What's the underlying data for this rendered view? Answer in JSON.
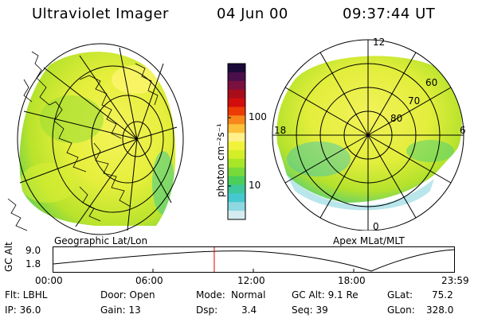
{
  "header": {
    "instrument": "Ultraviolet Imager",
    "date": "04 Jun 00",
    "time": "09:37:44 UT"
  },
  "left_panel": {
    "caption": "Geographic Lat/Lon"
  },
  "right_panel": {
    "caption": "Apex MLat/MLT",
    "lat_labels": [
      "60",
      "70",
      "80"
    ],
    "mlt_labels": {
      "top": "12",
      "left": "18",
      "right": "6",
      "bottom": "0"
    }
  },
  "colorbar": {
    "unit_label": "photon cm⁻²s⁻¹",
    "tick_labels": [
      "100",
      "10"
    ],
    "colors": [
      "#1a0a3a",
      "#4a0f4a",
      "#7a1040",
      "#a80d1a",
      "#d20d0d",
      "#ec3b05",
      "#f7871a",
      "#fbc13a",
      "#fff08a",
      "#f0f23c",
      "#d4ef28",
      "#a8e628",
      "#78d93a",
      "#4ccf5a",
      "#3ec79c",
      "#46c8d0",
      "#8ed8e2",
      "#d4ecf0"
    ]
  },
  "timeline": {
    "y_label": "GC Alt",
    "y_ticks": [
      "9.0",
      "1.8"
    ],
    "x_ticks": [
      "00:00",
      "06:00",
      "12:00",
      "18:00",
      "23:59"
    ],
    "marker_color": "#e00000",
    "marker_time": "09:37:44"
  },
  "info": {
    "flt": "Flt: LBHL",
    "ip": "IP: 36.0",
    "door": "Door: Open",
    "gain": "Gain: 13",
    "mode_label": "Mode:",
    "mode_value": "Normal",
    "dsp_label": "Dsp:",
    "dsp_value": "3.4",
    "gcalt": "GC Alt: 9.1 Re",
    "seq": "Seq: 39",
    "glat_label": "GLat:",
    "glat_value": "75.2",
    "glon_label": "GLon:",
    "glon_value": "328.0"
  }
}
